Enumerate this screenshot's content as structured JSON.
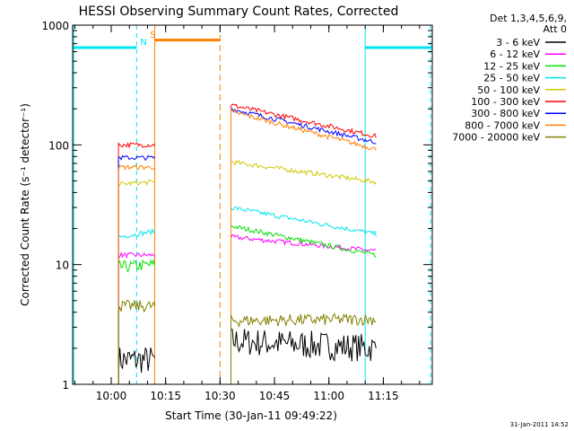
{
  "chart_data": {
    "type": "line",
    "title": "HESSI Observing Summary Count Rates, Corrected",
    "xlabel": "Start Time (30-Jan-11 09:49:22)",
    "ylabel": "Corrected Count Rate (s⁻¹ detector⁻¹)",
    "y_scale": "log",
    "ylim": [
      1,
      1000
    ],
    "xlim": [
      "09:49:22",
      "11:28:30"
    ],
    "x_ticks": [
      "10:00",
      "10:15",
      "10:30",
      "10:45",
      "11:00",
      "11:15"
    ],
    "y_ticks": [
      "1",
      "10",
      "100",
      "1000"
    ],
    "legend_header": [
      "Det 1,3,4,5,6,9,",
      "Att 0"
    ],
    "legend_position": "right",
    "markers": [
      {
        "label": "S",
        "time": "10:11:40",
        "color": "#ff8000"
      },
      {
        "label": "N",
        "time": "10:09:00",
        "color": "#00e5ee"
      }
    ],
    "series": [
      {
        "name": "3 - 6 keV",
        "color": "#000000",
        "segments": [
          {
            "t0": "10:02",
            "t1": "10:12",
            "y0": 1.6,
            "y1": 1.6
          },
          {
            "t0": "10:33",
            "t1": "11:13",
            "y0": 2.3,
            "y1": 2.0
          }
        ]
      },
      {
        "name": "6 - 12 keV",
        "color": "#ff00ff",
        "segments": [
          {
            "t0": "10:02",
            "t1": "10:12",
            "y0": 12,
            "y1": 12
          },
          {
            "t0": "10:33",
            "t1": "11:13",
            "y0": 17,
            "y1": 13
          }
        ]
      },
      {
        "name": "12 - 25 keV",
        "color": "#00e000",
        "segments": [
          {
            "t0": "10:02",
            "t1": "10:12",
            "y0": 9.5,
            "y1": 10
          },
          {
            "t0": "10:33",
            "t1": "11:13",
            "y0": 21,
            "y1": 12
          }
        ]
      },
      {
        "name": "25 - 50 keV",
        "color": "#00e5ee",
        "segments": [
          {
            "t0": "10:02",
            "t1": "10:12",
            "y0": 17,
            "y1": 19
          },
          {
            "t0": "10:33",
            "t1": "11:13",
            "y0": 30,
            "y1": 18
          }
        ]
      },
      {
        "name": "50 - 100 keV",
        "color": "#d0c800",
        "segments": [
          {
            "t0": "10:02",
            "t1": "10:12",
            "y0": 47,
            "y1": 49
          },
          {
            "t0": "10:33",
            "t1": "11:13",
            "y0": 72,
            "y1": 49
          }
        ]
      },
      {
        "name": "100 - 300 keV",
        "color": "#ff0000",
        "segments": [
          {
            "t0": "10:02",
            "t1": "10:12",
            "y0": 100,
            "y1": 100
          },
          {
            "t0": "10:33",
            "t1": "11:13",
            "y0": 215,
            "y1": 118
          }
        ]
      },
      {
        "name": "300 - 800 keV",
        "color": "#0000ff",
        "segments": [
          {
            "t0": "10:02",
            "t1": "10:12",
            "y0": 78,
            "y1": 78
          },
          {
            "t0": "10:33",
            "t1": "11:13",
            "y0": 200,
            "y1": 105
          }
        ]
      },
      {
        "name": "800 - 7000 keV",
        "color": "#ff8000",
        "segments": [
          {
            "t0": "10:02",
            "t1": "10:12",
            "y0": 65,
            "y1": 65
          },
          {
            "t0": "10:33",
            "t1": "11:13",
            "y0": 190,
            "y1": 92
          }
        ]
      },
      {
        "name": "7000 - 20000 keV",
        "color": "#808000",
        "segments": [
          {
            "t0": "10:02",
            "t1": "10:12",
            "y0": 4.5,
            "y1": 4.5
          },
          {
            "t0": "10:33",
            "t1": "11:13",
            "y0": 3.4,
            "y1": 3.5
          }
        ]
      }
    ],
    "flags": [
      {
        "color": "#00e5ee",
        "level": 650,
        "from": "09:49:22",
        "to": "10:07"
      },
      {
        "color": "#00e5ee",
        "level": 650,
        "from": "11:10",
        "to": "11:28:30"
      },
      {
        "color": "#ff8000",
        "level": 750,
        "from": "10:12",
        "to": "10:30"
      }
    ]
  },
  "footer": {
    "timestamp": "31-Jan-2011 14:52"
  }
}
